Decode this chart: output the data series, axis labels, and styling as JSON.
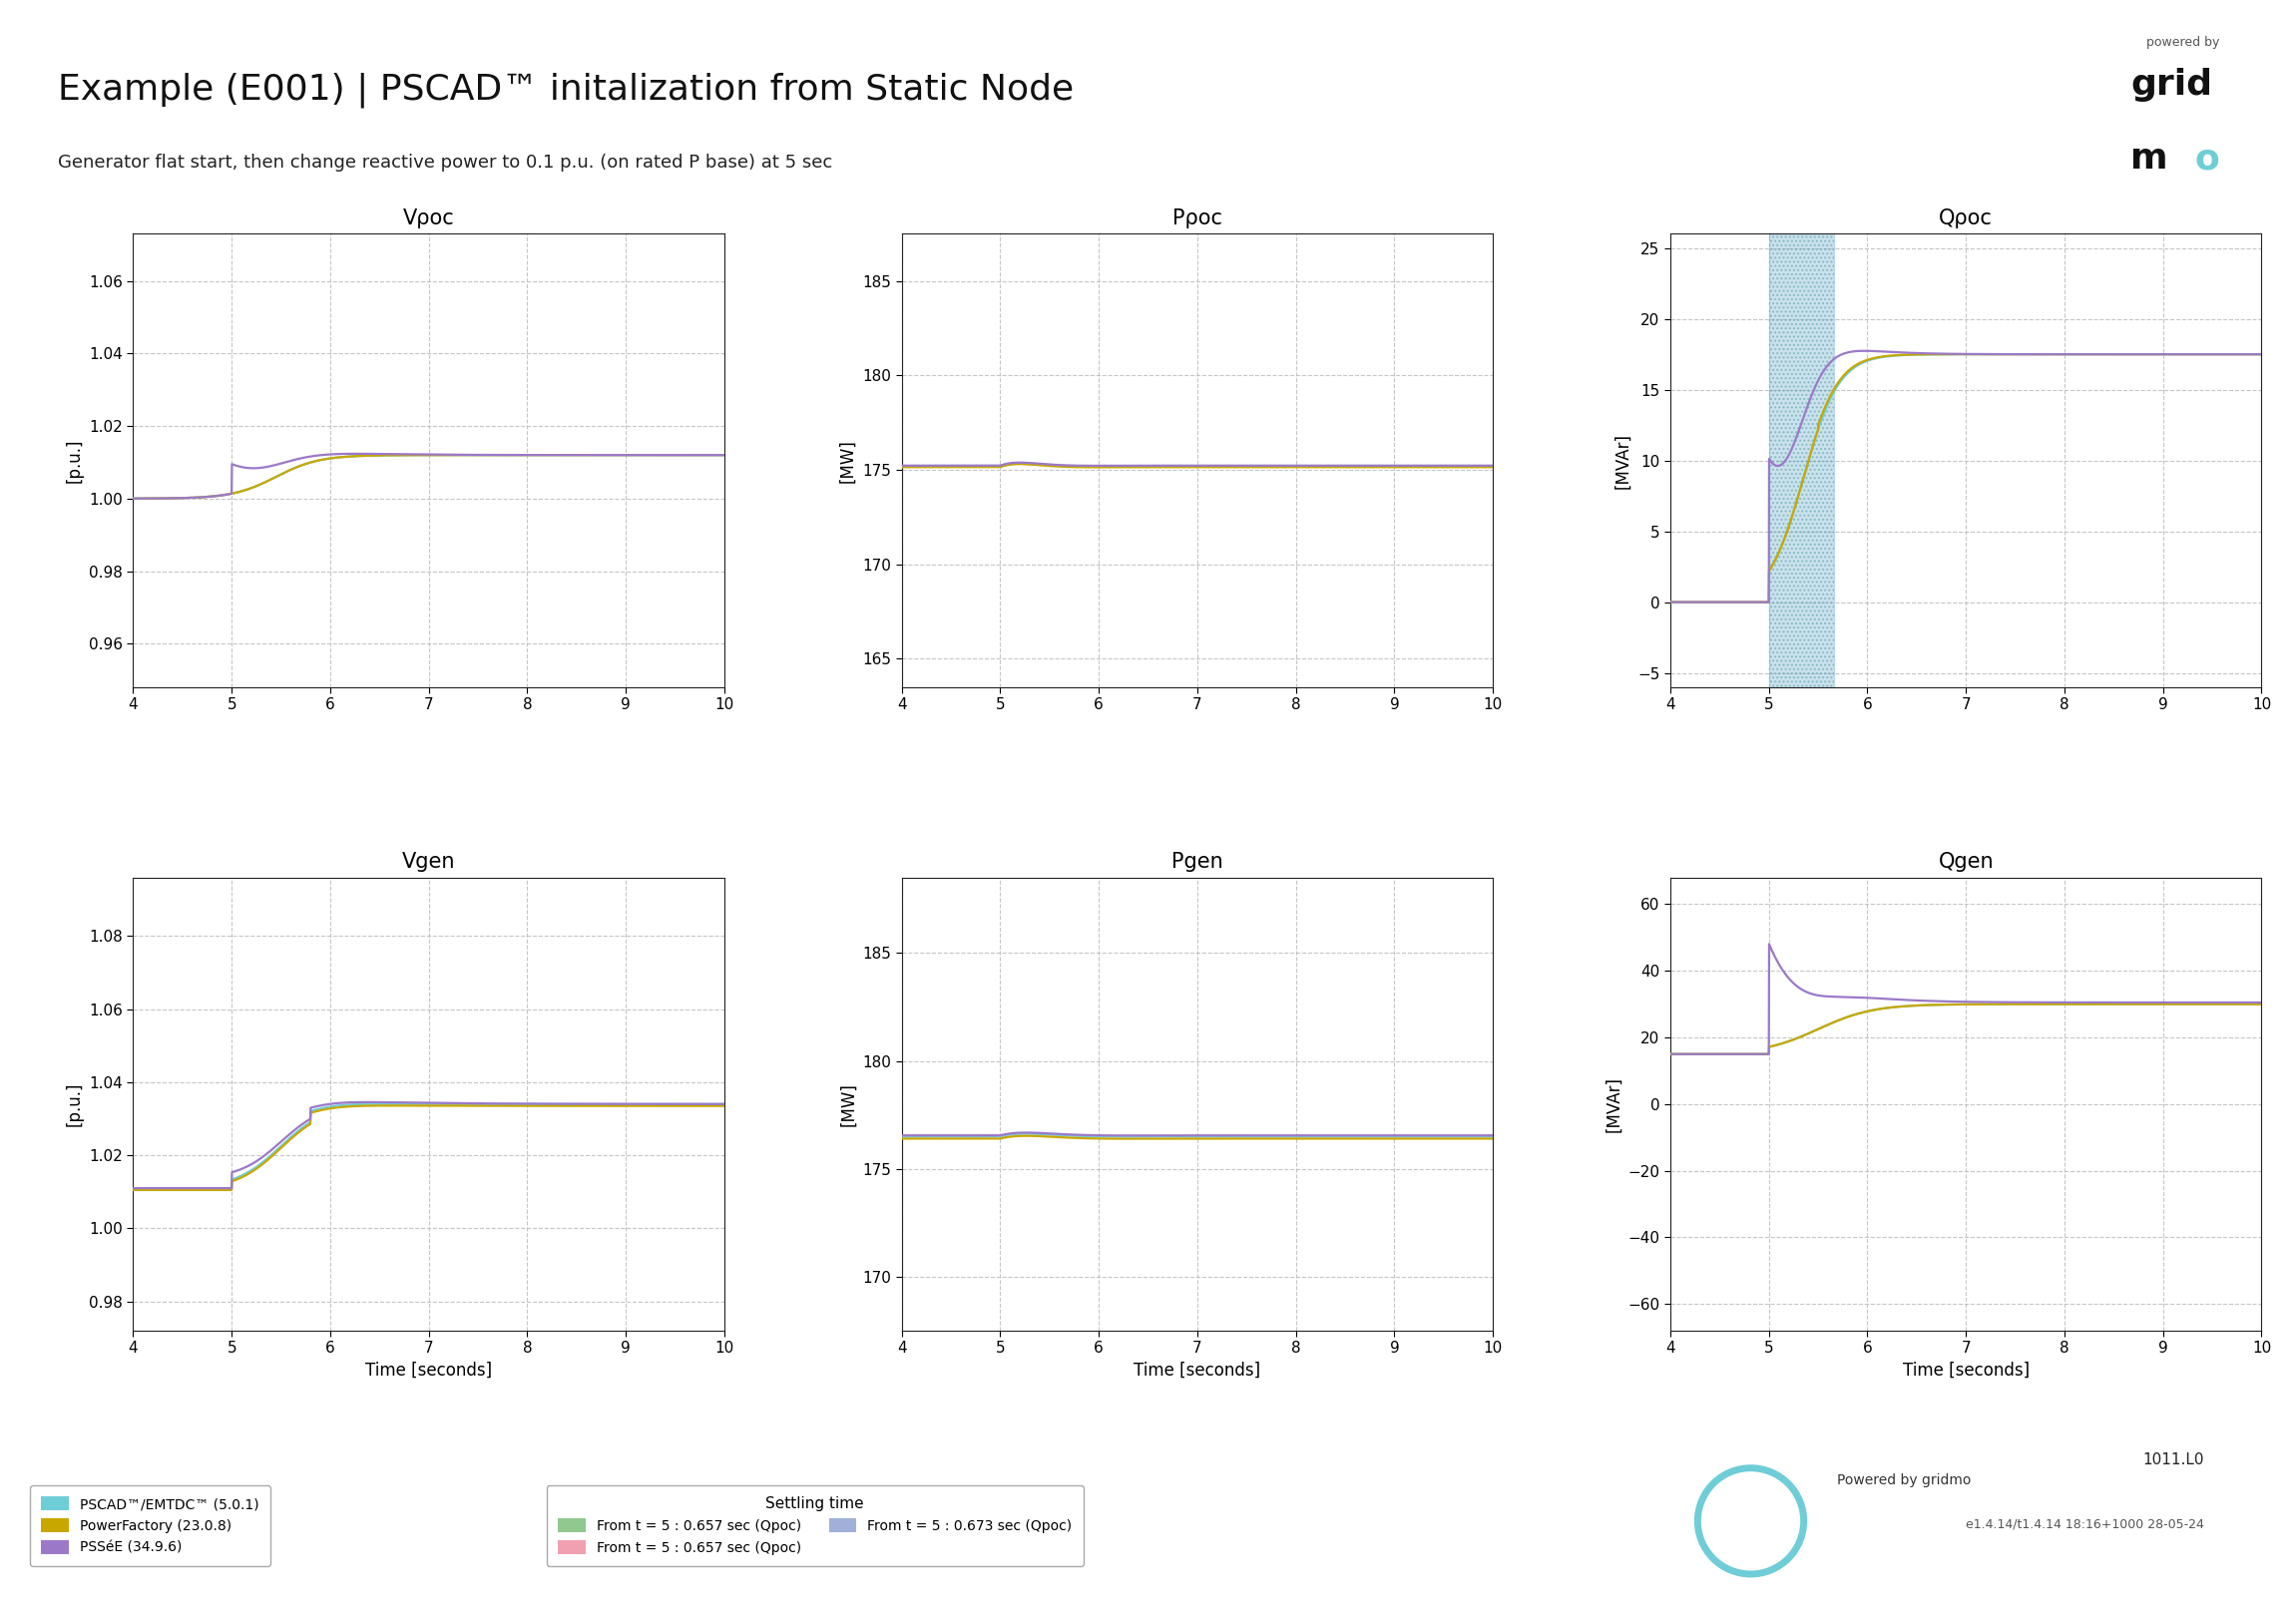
{
  "title": "Example (E001) | PSCAD™ initalization from Static Node",
  "subtitle": "Generator flat start, then change reactive power to 0.1 p.u. (on rated P base) at 5 sec",
  "subplots": [
    {
      "title": "Vρoc",
      "ylabel": "[p.u.]",
      "xlabel": "",
      "ylim": [
        0.948,
        1.073
      ],
      "yticks": [
        0.96,
        0.98,
        1.0,
        1.02,
        1.04,
        1.06
      ],
      "xlim": [
        4,
        10
      ],
      "xticks": [
        4,
        5,
        6,
        7,
        8,
        9,
        10
      ],
      "shade": false
    },
    {
      "title": "Pρoc",
      "ylabel": "[MW]",
      "xlabel": "",
      "ylim": [
        163.5,
        187.5
      ],
      "yticks": [
        165,
        170,
        175,
        180,
        185
      ],
      "xlim": [
        4,
        10
      ],
      "xticks": [
        4,
        5,
        6,
        7,
        8,
        9,
        10
      ],
      "shade": false
    },
    {
      "title": "Qρoc",
      "ylabel": "[MVAr]",
      "xlabel": "",
      "ylim": [
        -6.0,
        26.0
      ],
      "yticks": [
        -5,
        0,
        5,
        10,
        15,
        20,
        25
      ],
      "xlim": [
        4,
        10
      ],
      "xticks": [
        4,
        5,
        6,
        7,
        8,
        9,
        10
      ],
      "shade": true
    },
    {
      "title": "Vgen",
      "ylabel": "[p.u.]",
      "xlabel": "Time [seconds]",
      "ylim": [
        0.972,
        1.096
      ],
      "yticks": [
        0.98,
        1.0,
        1.02,
        1.04,
        1.06,
        1.08
      ],
      "xlim": [
        4,
        10
      ],
      "xticks": [
        4,
        5,
        6,
        7,
        8,
        9,
        10
      ],
      "shade": false
    },
    {
      "title": "Pgen",
      "ylabel": "[MW]",
      "xlabel": "Time [seconds]",
      "ylim": [
        167.5,
        188.5
      ],
      "yticks": [
        170,
        175,
        180,
        185
      ],
      "xlim": [
        4,
        10
      ],
      "xticks": [
        4,
        5,
        6,
        7,
        8,
        9,
        10
      ],
      "shade": false
    },
    {
      "title": "Qgen",
      "ylabel": "[MVAr]",
      "xlabel": "Time [seconds]",
      "ylim": [
        -68,
        68
      ],
      "yticks": [
        -60,
        -40,
        -20,
        0,
        20,
        40,
        60
      ],
      "xlim": [
        4,
        10
      ],
      "xticks": [
        4,
        5,
        6,
        7,
        8,
        9,
        10
      ],
      "shade": false
    }
  ],
  "colors": {
    "pscad": "#6ecdd6",
    "pf": "#c8a800",
    "psse": "#9b79c8"
  },
  "shading_color": "#89bfd4",
  "shading_alpha": 0.45,
  "background": "#ffffff",
  "grid_color": "#c0c0c0",
  "legend_labels": {
    "pscad": "PSCAD™/EMTDC™ (5.0.1)",
    "pf": "PowerFactory (23.0.8)",
    "psse": "PSSéE (34.9.6)"
  },
  "settling_title": "Settling time",
  "settling_labels": [
    "From t = 5 : 0.657 sec (Qpoc)",
    "From t = 5 : 0.657 sec (Qpoc)",
    "From t = 5 : 0.673 sec (Qpoc)"
  ],
  "settling_colors": [
    "#90c890",
    "#f0a0b0",
    "#a0b0d8"
  ],
  "logo_text1": "powered by",
  "logo_grid": "grid",
  "logo_mo_black": "m",
  "logo_mo_cyan": "o",
  "bottom_right_1": "1011.L0",
  "bottom_right_2": "e1.4.14/t1.4.14 18:16+1000 28-05-24",
  "circle_color": "#6ecdd6",
  "powered_by_text": "Powered by gridmo"
}
